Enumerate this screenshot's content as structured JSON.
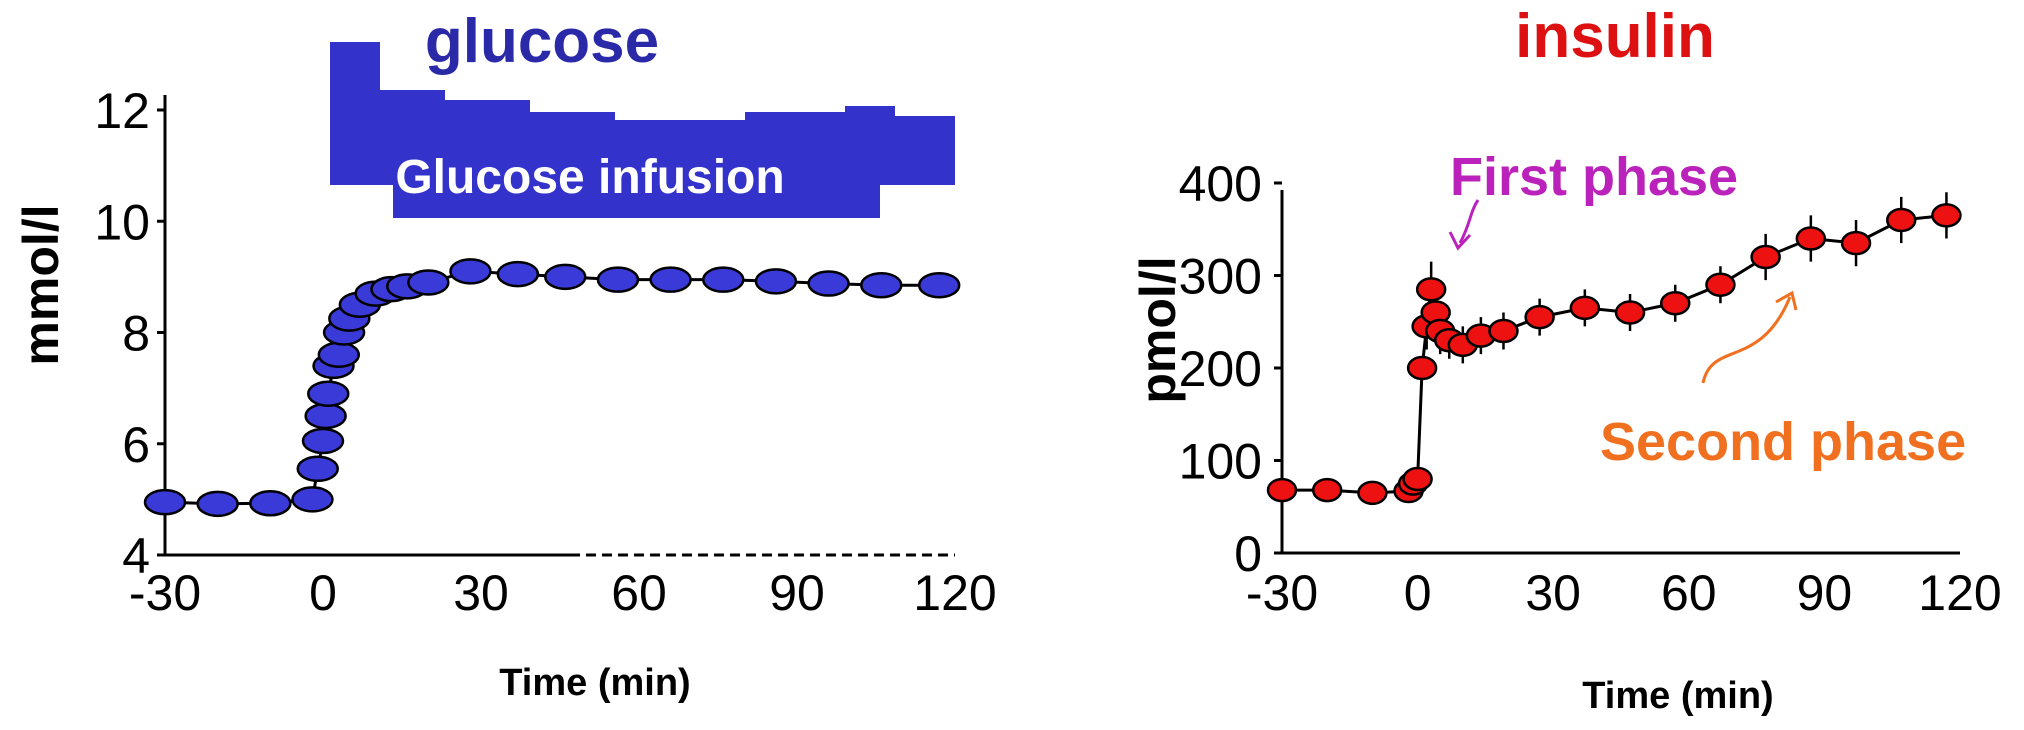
{
  "chart_data": [
    {
      "type": "line",
      "title": "glucose",
      "title_color": "#2a2aa8",
      "xlabel": "Time (min)",
      "ylabel": "mmol/l",
      "xlim": [
        -30,
        120
      ],
      "ylim": [
        4,
        12
      ],
      "xticks": [
        "-30",
        "0",
        "30",
        "60",
        "90",
        "120"
      ],
      "yticks": [
        "4",
        "6",
        "8",
        "10",
        "12"
      ],
      "marker_color": "#3a3ad8",
      "series": [
        {
          "x": [
            -30,
            -20,
            -10,
            -2,
            -1,
            0,
            0.5,
            1,
            2,
            3,
            4,
            5,
            7,
            10,
            13,
            16,
            20,
            28,
            37,
            46,
            56,
            66,
            76,
            86,
            96,
            106,
            117
          ],
          "y": [
            4.95,
            4.92,
            4.93,
            5.0,
            5.55,
            6.05,
            6.5,
            6.9,
            7.4,
            7.6,
            8.0,
            8.25,
            8.5,
            8.7,
            8.78,
            8.83,
            8.9,
            9.1,
            9.05,
            9.0,
            8.95,
            8.95,
            8.95,
            8.92,
            8.88,
            8.85,
            8.85
          ]
        }
      ],
      "annotations": [
        {
          "text": "Glucose infusion",
          "color": "#3333cc"
        }
      ]
    },
    {
      "type": "line",
      "title": "insulin",
      "title_color": "#dd1111",
      "xlabel": "Time (min)",
      "ylabel": "pmol/l",
      "xlim": [
        -30,
        120
      ],
      "ylim": [
        0,
        400
      ],
      "xticks": [
        "-30",
        "0",
        "30",
        "60",
        "90",
        "120"
      ],
      "yticks": [
        "0",
        "100",
        "200",
        "300",
        "400"
      ],
      "marker_color": "#ee1111",
      "series": [
        {
          "x": [
            -30,
            -20,
            -10,
            -2,
            -1,
            0,
            1,
            2,
            3,
            4,
            5,
            7,
            10,
            14,
            19,
            27,
            37,
            47,
            57,
            67,
            77,
            87,
            97,
            107,
            117
          ],
          "y": [
            68,
            68,
            65,
            67,
            75,
            80,
            200,
            245,
            285,
            260,
            240,
            230,
            225,
            235,
            240,
            255,
            265,
            260,
            270,
            290,
            320,
            340,
            335,
            360,
            365
          ],
          "error": [
            0,
            0,
            0,
            0,
            0,
            0,
            0,
            25,
            30,
            25,
            25,
            20,
            20,
            20,
            20,
            20,
            20,
            20,
            20,
            20,
            25,
            25,
            25,
            25,
            25
          ]
        }
      ],
      "annotations": [
        {
          "text": "First phase",
          "color": "#bb22bb"
        },
        {
          "text": "Second phase",
          "color": "#f07020"
        }
      ]
    }
  ]
}
